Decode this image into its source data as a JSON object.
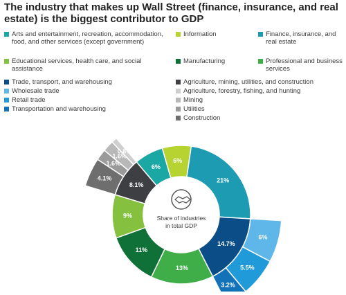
{
  "header": {
    "title": "The industry that makes up Wall Street (finance, insurance, and real estate) is the biggest contributor to GDP"
  },
  "legend": [
    {
      "label": "Arts and entertainment, recreation, accommodation, food, and other services (except government)",
      "color": "#1ba7a4"
    },
    {
      "label": "Information",
      "color": "#b6d332"
    },
    {
      "label": "Finance, insurance, and real estate",
      "color": "#1d9bb3"
    },
    {
      "label": "Educational services, health care, and social assistance",
      "color": "#86c03f"
    },
    {
      "label": "Manufacturing",
      "color": "#0f7038"
    },
    {
      "label": "Professional and business services",
      "color": "#3fae49"
    },
    {
      "label": "Trade, transport, and warehousing",
      "color": "#0b4d86"
    },
    {
      "label": "Agriculture, mining, utilities, and construction",
      "color": "#3d3f42"
    },
    {
      "label": "Wholesale trade",
      "color": "#5fb6e8"
    },
    {
      "label": "Agriculture, forestry, fishing, and hunting",
      "color": "#cfcfcf"
    },
    {
      "label": "Retail trade",
      "color": "#219ad9"
    },
    {
      "label": "Mining",
      "color": "#b8b8b8"
    },
    {
      "label": "Transportation and warehousing",
      "color": "#1473b8"
    },
    {
      "label": "Utilities",
      "color": "#9a9a9a"
    },
    {
      "label": "Construction",
      "color": "#6e6e6e"
    }
  ],
  "center": {
    "label": "Share of industries in total GDP",
    "icon": "handshake-icon"
  },
  "chart_data": {
    "type": "pie",
    "inner": {
      "categories": [
        "Information",
        "Finance, insurance, and real estate",
        "Trade, transport, and warehousing",
        "Professional and business services",
        "Manufacturing",
        "Educational services, health care, and social assistance",
        "Agriculture, mining, utilities, and construction",
        "Arts and entertainment, recreation, accommodation, food, and other services (except government)"
      ],
      "values": [
        6,
        21,
        14.7,
        13,
        11,
        9,
        8.1,
        6
      ],
      "labels": [
        "6%",
        "21%",
        "14.7%",
        "13%",
        "11%",
        "9%",
        "8.1%",
        "6%"
      ],
      "colors": [
        "#b6d332",
        "#1d9bb3",
        "#0b4d86",
        "#3fae49",
        "#0f7038",
        "#86c03f",
        "#3d3f42",
        "#1ba7a4"
      ]
    },
    "outer_trade": {
      "categories": [
        "Wholesale trade",
        "Retail trade",
        "Transportation and warehousing"
      ],
      "values": [
        6,
        5.5,
        3.2
      ],
      "labels": [
        "6%",
        "5.5%",
        "3.2%"
      ],
      "colors": [
        "#5fb6e8",
        "#219ad9",
        "#1473b8"
      ]
    },
    "outer_agri": {
      "categories": [
        "Construction",
        "Utilities",
        "Mining",
        "Agriculture, forestry, fishing, and hunting"
      ],
      "values": [
        4.1,
        1.6,
        1.6,
        0.8
      ],
      "labels": [
        "4.1%",
        "1.6%",
        "1.6%",
        "0.8%"
      ],
      "colors": [
        "#6e6e6e",
        "#9a9a9a",
        "#b8b8b8",
        "#cfcfcf"
      ]
    }
  }
}
